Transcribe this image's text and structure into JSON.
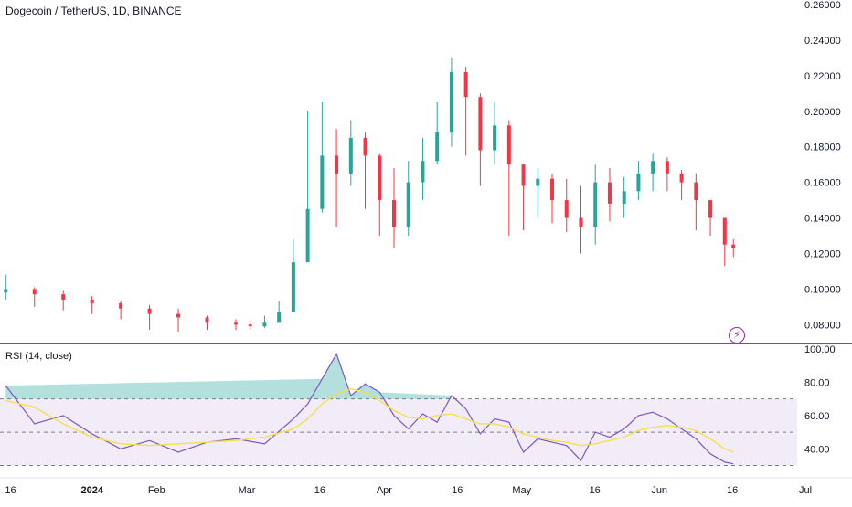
{
  "header": {
    "title": "Dogecoin / TetherUS, 1D, BINANCE"
  },
  "indicator": {
    "title": "RSI (14, close)"
  },
  "icons": {
    "badge": "flash-icon"
  },
  "colors": {
    "up": "#26a69a",
    "down": "#f23645",
    "rsi_line": "#7e57c2",
    "rsi_ma": "#f5e04a",
    "rsi_band": "#ede7f6"
  },
  "chart_data": [
    {
      "type": "candlestick",
      "title": "Dogecoin / TetherUS, 1D, BINANCE",
      "y_ticks": [
        "0.26000",
        "0.24000",
        "0.22000",
        "0.20000",
        "0.18000",
        "0.16000",
        "0.14000",
        "0.12000",
        "0.10000",
        "0.08000"
      ],
      "ylim": [
        0.075,
        0.26
      ],
      "x_ticks": [
        "16",
        "2024",
        "Feb",
        "Mar",
        "16",
        "Apr",
        "16",
        "May",
        "16",
        "Jun",
        "16",
        "Jul"
      ],
      "x": [
        0,
        10,
        20,
        30,
        40,
        50,
        60,
        70,
        80,
        85,
        90,
        95,
        100,
        105,
        110,
        115,
        120,
        125,
        130,
        135,
        140,
        145,
        150,
        155,
        160,
        165,
        170,
        175,
        180,
        185,
        190,
        195,
        200,
        205,
        210,
        215,
        220,
        225,
        230,
        235,
        240,
        245,
        250,
        253
      ],
      "close": [
        0.1,
        0.097,
        0.094,
        0.092,
        0.089,
        0.086,
        0.084,
        0.081,
        0.08,
        0.079,
        0.081,
        0.087,
        0.115,
        0.145,
        0.175,
        0.165,
        0.185,
        0.175,
        0.15,
        0.135,
        0.16,
        0.172,
        0.188,
        0.222,
        0.208,
        0.178,
        0.192,
        0.17,
        0.158,
        0.162,
        0.15,
        0.14,
        0.135,
        0.16,
        0.148,
        0.155,
        0.165,
        0.172,
        0.165,
        0.16,
        0.15,
        0.14,
        0.125,
        0.123
      ],
      "high": [
        0.108,
        0.101,
        0.099,
        0.096,
        0.093,
        0.091,
        0.089,
        0.085,
        0.083,
        0.082,
        0.085,
        0.093,
        0.128,
        0.2,
        0.205,
        0.19,
        0.195,
        0.188,
        0.176,
        0.168,
        0.172,
        0.185,
        0.205,
        0.23,
        0.225,
        0.21,
        0.205,
        0.195,
        0.17,
        0.168,
        0.165,
        0.162,
        0.158,
        0.17,
        0.168,
        0.163,
        0.172,
        0.176,
        0.174,
        0.167,
        0.165,
        0.147,
        0.138,
        0.128
      ],
      "low": [
        0.094,
        0.09,
        0.088,
        0.086,
        0.083,
        0.077,
        0.076,
        0.077,
        0.077,
        0.077,
        0.078,
        0.083,
        0.108,
        0.127,
        0.143,
        0.135,
        0.158,
        0.145,
        0.13,
        0.123,
        0.13,
        0.15,
        0.17,
        0.18,
        0.175,
        0.158,
        0.17,
        0.13,
        0.133,
        0.14,
        0.137,
        0.132,
        0.12,
        0.125,
        0.138,
        0.14,
        0.15,
        0.155,
        0.155,
        0.15,
        0.133,
        0.13,
        0.113,
        0.118
      ]
    },
    {
      "type": "line",
      "title": "RSI (14, close)",
      "y_ticks": [
        "100.00",
        "80.00",
        "60.00",
        "40.00"
      ],
      "ylim": [
        27,
        100
      ],
      "levels": [
        70,
        50,
        30
      ],
      "x": [
        0,
        10,
        20,
        30,
        40,
        50,
        60,
        70,
        80,
        90,
        100,
        105,
        110,
        115,
        120,
        125,
        130,
        135,
        140,
        145,
        150,
        155,
        160,
        165,
        170,
        175,
        180,
        185,
        190,
        195,
        200,
        205,
        210,
        215,
        220,
        225,
        230,
        235,
        240,
        245,
        250,
        253
      ],
      "series": [
        {
          "values": [
            78,
            55,
            60,
            49,
            40,
            45,
            38,
            44,
            46,
            43,
            58,
            67,
            82,
            97,
            72,
            79,
            74,
            60,
            52,
            61,
            56,
            72,
            64,
            49,
            58,
            56,
            38,
            46,
            44,
            42,
            33,
            50,
            47,
            52,
            60,
            62,
            58,
            52,
            46,
            37,
            32,
            31
          ]
        },
        {
          "values": [
            69,
            65,
            55,
            47,
            43,
            42,
            43,
            44,
            45,
            47,
            52,
            58,
            67,
            73,
            76,
            74,
            69,
            63,
            59,
            58,
            60,
            61,
            58,
            55,
            55,
            53,
            49,
            47,
            45,
            44,
            42,
            43,
            45,
            47,
            51,
            53,
            54,
            53,
            51,
            46,
            40,
            38
          ]
        }
      ]
    }
  ]
}
